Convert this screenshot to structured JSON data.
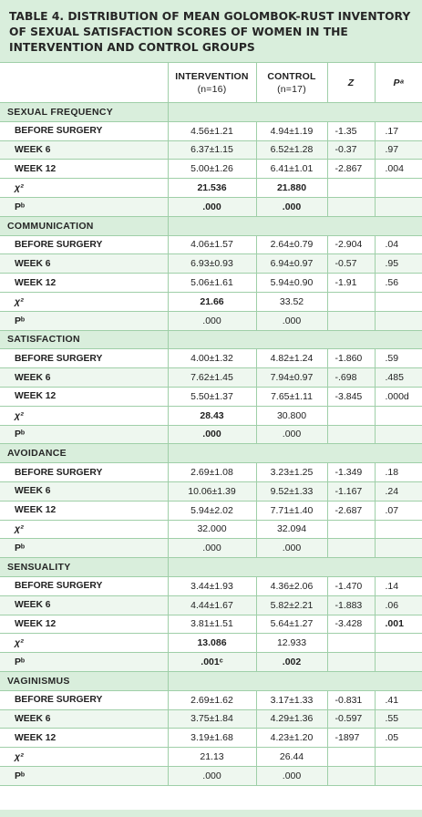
{
  "title": "TABLE 4. DISTRIBUTION OF MEAN GOLOMBOK-RUST INVENTORY OF SEXUAL SATISFACTION SCORES OF WOMEN IN THE INTERVENTION AND CONTROL GROUPS",
  "columns": {
    "intervention": "INTERVENTION",
    "intervention_n": "(n=16)",
    "control": "CONTROL",
    "control_n": "(n=17)",
    "z": "Z",
    "p": "Pᵃ"
  },
  "sections": [
    {
      "name": "SEXUAL FREQUENCY",
      "rows": [
        {
          "label": "BEFORE SURGERY",
          "intervention": "4.56±1.21",
          "control": "4.94±1.19",
          "z": "-1.35",
          "p": ".17"
        },
        {
          "label": "WEEK 6",
          "intervention": "6.37±1.15",
          "control": "6.52±1.28",
          "z": "-0.37",
          "p": ".97"
        },
        {
          "label": "WEEK 12",
          "intervention": "5.00±1.26",
          "control": "6.41±1.01",
          "z": "-2.867",
          "p": ".004"
        }
      ],
      "chi": {
        "label": "χ²",
        "intervention": "21.536",
        "control": "21.880"
      },
      "pb": {
        "label": "Pᵇ",
        "intervention": ".000",
        "control": ".000"
      }
    },
    {
      "name": "COMMUNICATION",
      "rows": [
        {
          "label": "BEFORE SURGERY",
          "intervention": "4.06±1.57",
          "control": "2.64±0.79",
          "z": "-2.904",
          "p": ".04"
        },
        {
          "label": "WEEK 6",
          "intervention": "6.93±0.93",
          "control": "6.94±0.97",
          "z": "-0.57",
          "p": ".95"
        },
        {
          "label": "WEEK 12",
          "intervention": "5.06±1.61",
          "control": "5.94±0.90",
          "z": "-1.91",
          "p": ".56"
        }
      ],
      "chi": {
        "label": "χ²",
        "intervention": "21.66",
        "control": "33.52"
      },
      "pb": {
        "label": "Pᵇ",
        "intervention": ".000",
        "control": ".000"
      }
    },
    {
      "name": "SATISFACTION",
      "rows": [
        {
          "label": "BEFORE SURGERY",
          "intervention": "4.00±1.32",
          "control": "4.82±1.24",
          "z": "-1.860",
          "p": ".59"
        },
        {
          "label": "WEEK 6",
          "intervention": "7.62±1.45",
          "control": "7.94±0.97",
          "z": "-.698",
          "p": ".485"
        },
        {
          "label": "WEEK 12",
          "intervention": "5.50±1.37",
          "control": "7.65±1.11",
          "z": "-3.845",
          "p": ".000d"
        }
      ],
      "chi": {
        "label": "χ²",
        "intervention": "28.43",
        "control": "30.800"
      },
      "pb": {
        "label": "Pᵇ",
        "intervention": ".000",
        "control": ".000"
      }
    },
    {
      "name": "AVOIDANCE",
      "rows": [
        {
          "label": "BEFORE SURGERY",
          "intervention": "2.69±1.08",
          "control": "3.23±1.25",
          "z": "-1.349",
          "p": ".18"
        },
        {
          "label": "WEEK 6",
          "intervention": "10.06±1.39",
          "control": "9.52±1.33",
          "z": "-1.167",
          "p": ".24"
        },
        {
          "label": "WEEK 12",
          "intervention": "5.94±2.02",
          "control": "7.71±1.40",
          "z": "-2.687",
          "p": ".07"
        }
      ],
      "chi": {
        "label": "χ²",
        "intervention": "32.000",
        "control": "32.094"
      },
      "pb": {
        "label": "Pᵇ",
        "intervention": ".000",
        "control": ".000"
      }
    },
    {
      "name": "SENSUALITY",
      "rows": [
        {
          "label": "BEFORE SURGERY",
          "intervention": "3.44±1.93",
          "control": "4.36±2.06",
          "z": "-1.470",
          "p": ".14"
        },
        {
          "label": "WEEK 6",
          "intervention": "4.44±1.67",
          "control": "5.82±2.21",
          "z": "-1.883",
          "p": ".06"
        },
        {
          "label": "WEEK 12",
          "intervention": "3.81±1.51",
          "control": "5.64±1.27",
          "z": "-3.428",
          "p": ".001"
        }
      ],
      "chi": {
        "label": "χ²",
        "intervention": "13.086",
        "control": "12.933"
      },
      "pb": {
        "label": "Pᵇ",
        "intervention": ".001ᶜ",
        "control": ".002"
      }
    },
    {
      "name": "VAGINISMUS",
      "rows": [
        {
          "label": "BEFORE SURGERY",
          "intervention": "2.69±1.62",
          "control": "3.17±1.33",
          "z": "-0.831",
          "p": ".41"
        },
        {
          "label": "WEEK 6",
          "intervention": "3.75±1.84",
          "control": "4.29±1.36",
          "z": "-0.597",
          "p": ".55"
        },
        {
          "label": "WEEK 12",
          "intervention": "3.19±1.68",
          "control": "4.23±1.20",
          "z": "-1897",
          "p": ".05"
        }
      ],
      "chi": {
        "label": "χ²",
        "intervention": "21.13",
        "control": "26.44"
      },
      "pb": {
        "label": "Pᵇ",
        "intervention": ".000",
        "control": ".000"
      }
    }
  ],
  "colors": {
    "header_fill": "#d9eedc",
    "border": "#9fcfa8",
    "row_tint": "#eef7ef"
  }
}
